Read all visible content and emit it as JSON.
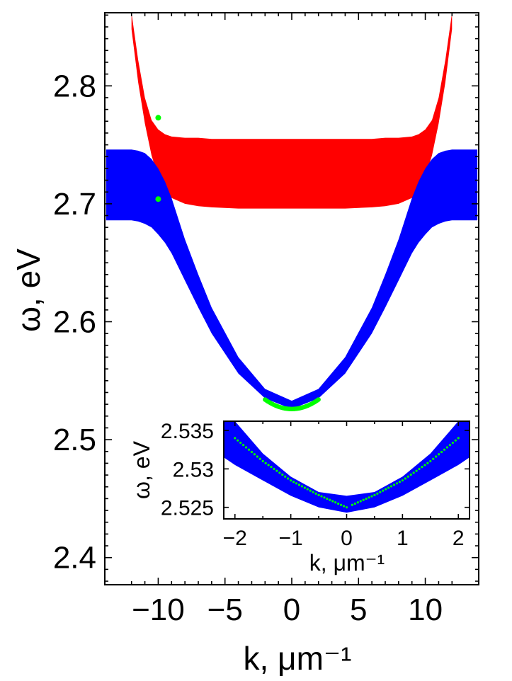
{
  "chart_data": [
    {
      "type": "area",
      "xlabel": "k, μm⁻¹",
      "ylabel": "ω, eV",
      "xlim": [
        -14,
        14
      ],
      "ylim": [
        2.377,
        2.862
      ],
      "x_ticks": [
        -10,
        -5,
        0,
        5,
        10
      ],
      "x_tick_labels": [
        "−10",
        "−5",
        "0",
        "5",
        "10"
      ],
      "y_ticks": [
        2.4,
        2.5,
        2.6,
        2.7,
        2.8
      ],
      "y_tick_labels": [
        "2.4",
        "2.5",
        "2.6",
        "2.7",
        "2.8"
      ],
      "grid": false,
      "colors": {
        "upper_band": "#ff0000",
        "lower_band": "#0000ff",
        "markers": "#00ff00"
      },
      "series": [
        {
          "k": [
            -13.9,
            -12.1,
            -12.0,
            -11.5,
            -11.0,
            -10.5,
            -10.0,
            -9.5,
            -9.0,
            -8.0,
            -7.0,
            -6.0,
            -4.0,
            -2.0,
            0.0,
            2.0,
            4.0,
            6.0,
            7.0,
            8.0,
            9.0,
            9.5,
            10.0,
            10.5,
            11.0,
            11.5,
            12.0,
            12.1,
            13.9
          ],
          "upper_lower": [
            null,
            null,
            2.848,
            2.803,
            2.768,
            2.741,
            2.723,
            2.712,
            2.705,
            2.7,
            2.698,
            2.697,
            2.696,
            2.696,
            2.696,
            2.696,
            2.696,
            2.697,
            2.698,
            2.7,
            2.705,
            2.712,
            2.723,
            2.741,
            2.768,
            2.803,
            2.848,
            null,
            null
          ],
          "upper_upper": [
            null,
            null,
            2.862,
            2.822,
            2.79,
            2.771,
            2.763,
            2.759,
            2.757,
            2.756,
            2.756,
            2.755,
            2.755,
            2.755,
            2.755,
            2.755,
            2.755,
            2.755,
            2.756,
            2.756,
            2.757,
            2.759,
            2.763,
            2.771,
            2.79,
            2.822,
            2.862,
            null,
            null
          ],
          "lower_lower": [
            2.686,
            2.686,
            2.686,
            2.685,
            2.683,
            2.68,
            2.674,
            2.667,
            2.658,
            2.635,
            2.612,
            2.59,
            2.556,
            2.535,
            2.526,
            2.535,
            2.556,
            2.59,
            2.612,
            2.635,
            2.658,
            2.667,
            2.674,
            2.68,
            2.683,
            2.685,
            2.686,
            2.686,
            2.686
          ],
          "lower_upper": [
            2.746,
            2.746,
            2.746,
            2.745,
            2.743,
            2.738,
            2.73,
            2.719,
            2.705,
            2.67,
            2.64,
            2.612,
            2.57,
            2.543,
            2.533,
            2.543,
            2.57,
            2.612,
            2.64,
            2.67,
            2.705,
            2.719,
            2.73,
            2.738,
            2.743,
            2.745,
            2.746,
            2.746,
            2.746
          ]
        }
      ],
      "markers": [
        {
          "k": -10.0,
          "omega": 2.773
        },
        {
          "k": -10.0,
          "omega": 2.704
        }
      ],
      "marker_arc": {
        "k_range": [
          -2,
          2
        ],
        "omega_at_0": 2.526,
        "omega_at_edges": 2.534
      }
    },
    {
      "type": "area",
      "xlabel": "k, μm⁻¹",
      "ylabel": "ω, eV",
      "xlim": [
        -2.2,
        2.2
      ],
      "ylim": [
        2.5235,
        2.5362
      ],
      "x_ticks": [
        -2,
        -1,
        0,
        1,
        2
      ],
      "x_tick_labels": [
        "−2",
        "−1",
        "0",
        "1",
        "2"
      ],
      "y_ticks": [
        2.525,
        2.53,
        2.535
      ],
      "y_tick_labels": [
        "2.525",
        "2.53",
        "2.535"
      ],
      "grid": false,
      "series": [
        {
          "k": [
            -2.2,
            -2.0,
            -1.5,
            -1.0,
            -0.5,
            0.0,
            0.5,
            1.0,
            1.5,
            2.0,
            2.2
          ],
          "band_lower": [
            2.5315,
            2.5305,
            2.5285,
            2.5265,
            2.525,
            2.5243,
            2.525,
            2.5265,
            2.5285,
            2.5305,
            2.5315
          ],
          "band_upper": [
            2.5365,
            2.5362,
            2.532,
            2.529,
            2.527,
            2.5265,
            2.527,
            2.529,
            2.532,
            2.5362,
            2.5365
          ],
          "points": [
            2.5347,
            2.534,
            2.531,
            2.5285,
            2.5266,
            2.525,
            2.5266,
            2.5285,
            2.531,
            2.534,
            2.5347
          ]
        }
      ]
    }
  ]
}
